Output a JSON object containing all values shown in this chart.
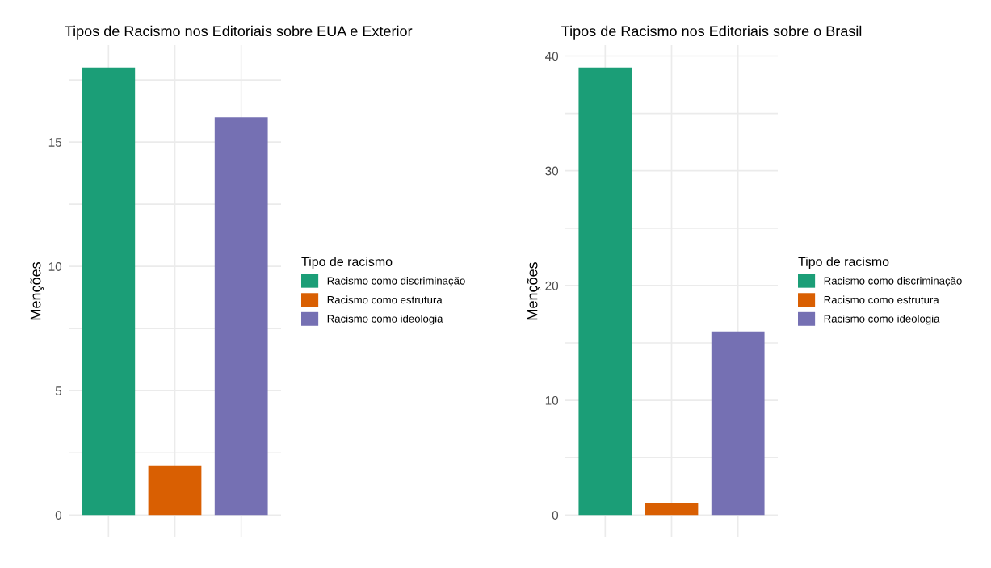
{
  "chart_data": [
    {
      "type": "bar",
      "title": "Tipos de Racismo nos Editoriais sobre EUA e Exterior",
      "ylabel": "Menções",
      "legend_title": "Tipo de racismo",
      "categories": [
        null,
        null,
        null
      ],
      "series": [
        {
          "name": "Racismo como discriminação",
          "color": "#1b9e77",
          "values": [
            18,
            null,
            null
          ]
        },
        {
          "name": "Racismo como estrutura",
          "color": "#d95f02",
          "values": [
            null,
            2,
            null
          ]
        },
        {
          "name": "Racismo como ideologia",
          "color": "#7570b3",
          "values": [
            null,
            null,
            16
          ]
        }
      ],
      "ylim": [
        -0.9,
        18.9
      ],
      "yticks": [
        0,
        {
          "value": 2.5,
          "label": null
        },
        5,
        {
          "value": 7.5,
          "label": null
        },
        10,
        {
          "value": 12.5,
          "label": null
        },
        15,
        {
          "value": 17.5,
          "label": null
        }
      ],
      "grid": true,
      "legend": "right",
      "tick_labels": "y"
    },
    {
      "type": "bar",
      "title": "Tipos de Racismo nos Editoriais sobre o Brasil",
      "ylabel": "Menções",
      "legend_title": "Tipo de racismo",
      "categories": [
        null,
        null,
        null
      ],
      "series": [
        {
          "name": "Racismo como discriminação",
          "color": "#1b9e77",
          "values": [
            39,
            null,
            null
          ]
        },
        {
          "name": "Racismo como estrutura",
          "color": "#d95f02",
          "values": [
            null,
            1,
            null
          ]
        },
        {
          "name": "Racismo como ideologia",
          "color": "#7570b3",
          "values": [
            null,
            null,
            16
          ]
        }
      ],
      "ylim": [
        -1.95,
        40.95
      ],
      "yticks": [
        0,
        {
          "value": 5,
          "label": null
        },
        10,
        {
          "value": 15,
          "label": null
        },
        20,
        {
          "value": 25,
          "label": null
        },
        30,
        {
          "value": 35,
          "label": null
        },
        40
      ],
      "grid": true,
      "legend": "right",
      "tick_labels": "y"
    }
  ]
}
